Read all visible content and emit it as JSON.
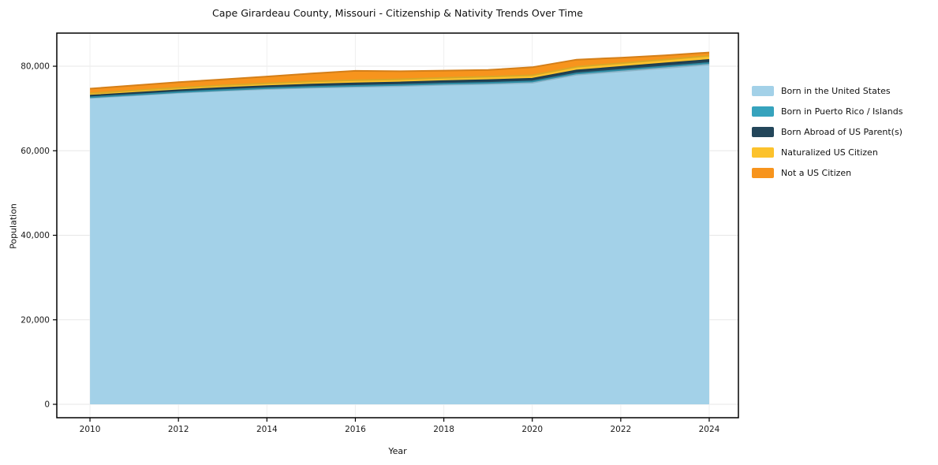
{
  "page": {
    "background": "#ffffff"
  },
  "chart_data": {
    "type": "area",
    "stacked": true,
    "title": "Cape Girardeau County, Missouri - Citizenship & Nativity Trends Over Time",
    "xlabel": "Year",
    "ylabel": "Population",
    "x": [
      2010,
      2011,
      2012,
      2013,
      2014,
      2015,
      2016,
      2017,
      2018,
      2019,
      2020,
      2021,
      2022,
      2023,
      2024
    ],
    "series": [
      {
        "name": "Born in the United States",
        "color": "#a3d1e8",
        "values": [
          72500,
          73100,
          73700,
          74200,
          74600,
          74900,
          75100,
          75300,
          75600,
          75800,
          76100,
          78000,
          78800,
          79600,
          80400
        ]
      },
      {
        "name": "Born in Puerto Rico / Islands",
        "color": "#36a3bd",
        "values": [
          150,
          160,
          170,
          180,
          200,
          220,
          250,
          260,
          270,
          280,
          290,
          300,
          320,
          340,
          350
        ]
      },
      {
        "name": "Born Abroad of US Parent(s)",
        "color": "#23465a",
        "values": [
          400,
          420,
          450,
          480,
          500,
          550,
          600,
          600,
          620,
          640,
          650,
          700,
          720,
          740,
          750
        ]
      },
      {
        "name": "Naturalized US Citizen",
        "color": "#fcc22c",
        "values": [
          550,
          580,
          600,
          630,
          660,
          700,
          750,
          760,
          780,
          800,
          820,
          850,
          880,
          900,
          950
        ]
      },
      {
        "name": "Not a US Citizen",
        "color": "#f7941d",
        "values": [
          1100,
          1200,
          1300,
          1400,
          1600,
          1900,
          2200,
          1900,
          1700,
          1600,
          1900,
          1700,
          1300,
          1000,
          800
        ]
      }
    ],
    "xticks": [
      2010,
      2012,
      2014,
      2016,
      2018,
      2020,
      2022,
      2024
    ],
    "yticks": [
      0,
      20000,
      40000,
      60000,
      80000
    ],
    "xlim": [
      2009.25,
      2024.66
    ],
    "ylim": [
      -3170,
      87840
    ],
    "grid": true,
    "legend_position": "right-outside",
    "axis_color": "#000000",
    "grid_color": "#e7e7e7",
    "text_color": "#1a1a1a"
  }
}
